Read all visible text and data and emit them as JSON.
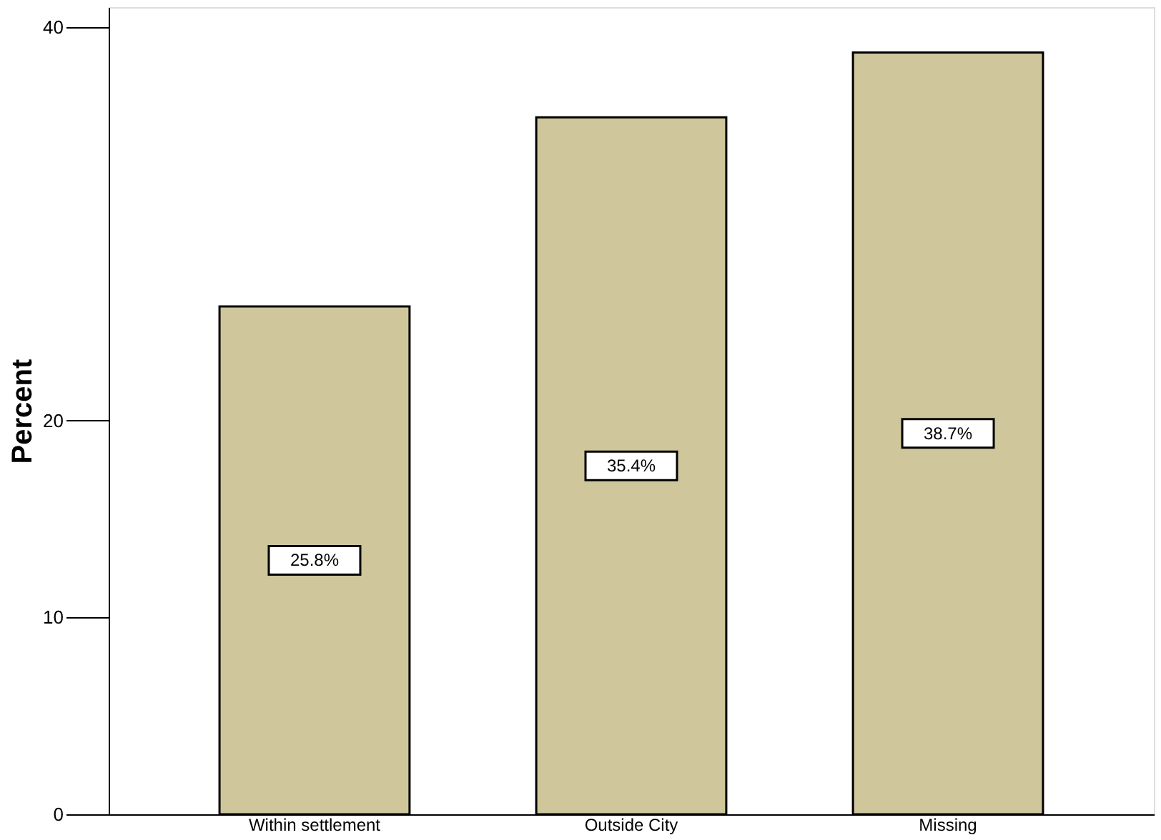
{
  "chart_data": {
    "type": "bar",
    "ylabel": "Percent",
    "categories": [
      "Within settlement",
      "Outside City",
      "Missing"
    ],
    "values": [
      25.8,
      35.4,
      38.7
    ],
    "value_labels": [
      "25.8%",
      "35.4%",
      "38.7%"
    ],
    "color": "#cfc69c",
    "ylim": [
      0,
      41
    ],
    "yticks": [
      0,
      10,
      20,
      40
    ],
    "grid": false
  }
}
